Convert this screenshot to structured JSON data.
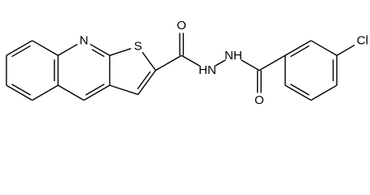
{
  "atoms": [
    {
      "label": "N"
    },
    {
      "label": "S"
    },
    {
      "label": "O"
    },
    {
      "label": "HN"
    },
    {
      "label": "NH"
    },
    {
      "label": "O"
    },
    {
      "label": "Cl"
    }
  ]
}
